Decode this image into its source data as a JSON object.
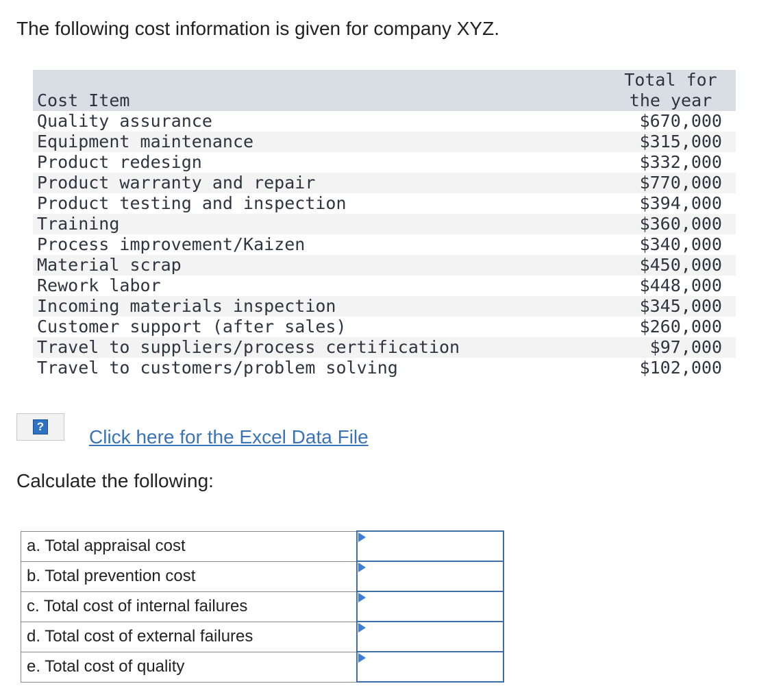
{
  "intro": "The following cost information is given for company XYZ.",
  "cost_table": {
    "header_item": "Cost Item",
    "header_amount_line1": "Total for",
    "header_amount_line2": "the year",
    "rows": [
      {
        "item": "Quality assurance",
        "amount": "$670,000"
      },
      {
        "item": "Equipment maintenance",
        "amount": "$315,000"
      },
      {
        "item": "Product redesign",
        "amount": "$332,000"
      },
      {
        "item": "Product warranty and repair",
        "amount": "$770,000"
      },
      {
        "item": "Product testing and inspection",
        "amount": "$394,000"
      },
      {
        "item": "Training",
        "amount": "$360,000"
      },
      {
        "item": "Process improvement/Kaizen",
        "amount": "$340,000"
      },
      {
        "item": "Material scrap",
        "amount": "$450,000"
      },
      {
        "item": "Rework labor",
        "amount": "$448,000"
      },
      {
        "item": "Incoming materials inspection",
        "amount": "$345,000"
      },
      {
        "item": "Customer support (after sales)",
        "amount": "$260,000"
      },
      {
        "item": "Travel to suppliers/process certification",
        "amount": "$97,000"
      },
      {
        "item": "Travel to customers/problem solving",
        "amount": "$102,000"
      }
    ]
  },
  "help_icon": {
    "icon": "question-mark-icon",
    "glyph": "?"
  },
  "excel_link": "Click here for the Excel Data File",
  "calc_heading": "Calculate the following:",
  "answers": [
    {
      "label": "a. Total appraisal cost",
      "value": ""
    },
    {
      "label": "b. Total prevention cost",
      "value": ""
    },
    {
      "label": "c. Total cost of internal failures",
      "value": ""
    },
    {
      "label": "d. Total cost of external failures",
      "value": ""
    },
    {
      "label": "e. Total cost of quality",
      "value": ""
    }
  ]
}
